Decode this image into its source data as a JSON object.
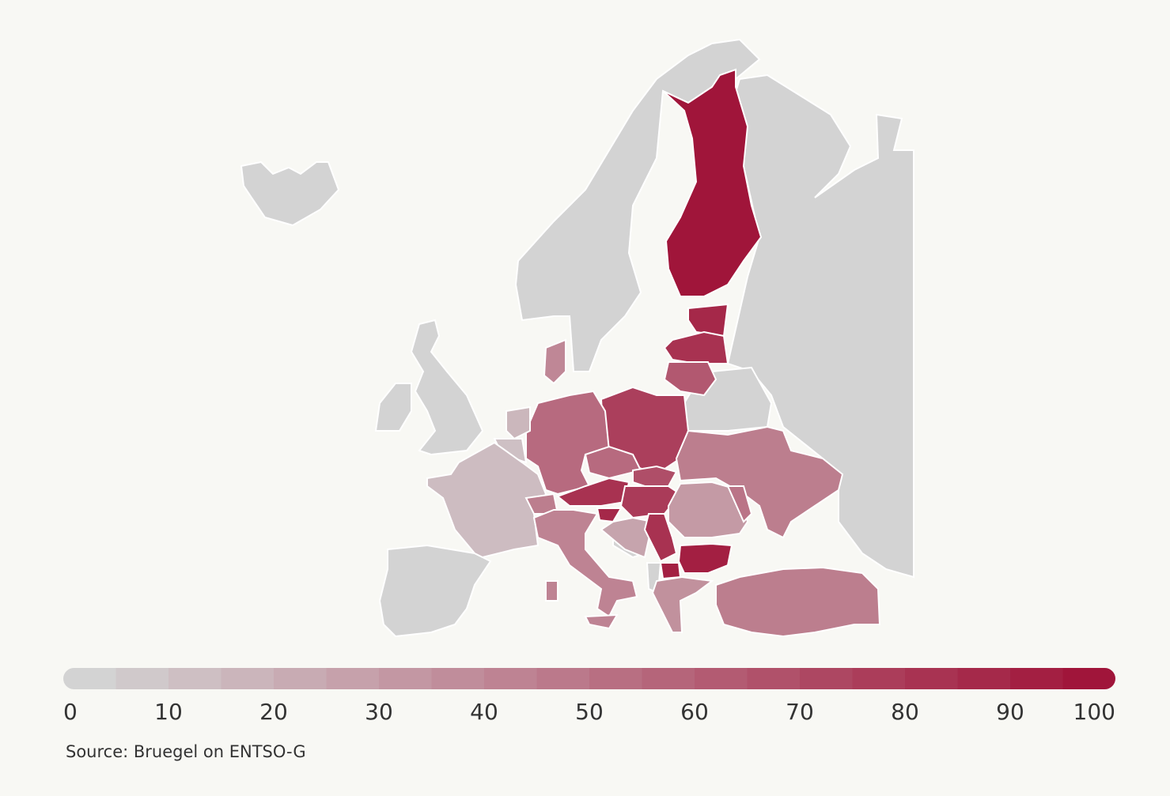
{
  "chart_data": {
    "type": "choropleth",
    "values": [
      100,
      90,
      85,
      65,
      78,
      55,
      40,
      15,
      10,
      12,
      45,
      55,
      70,
      85,
      80,
      90,
      25,
      42,
      85,
      30,
      45,
      50,
      95,
      95,
      35,
      45
    ],
    "colorbar": {
      "range": [
        0,
        100
      ],
      "ticks": [
        0,
        10,
        20,
        30,
        40,
        50,
        60,
        70,
        80,
        90,
        100
      ],
      "step": 5,
      "colors": [
        "#d3d3d3",
        "#a0153a"
      ]
    },
    "source": "Source: Bruegel on ENTSO-G"
  }
}
